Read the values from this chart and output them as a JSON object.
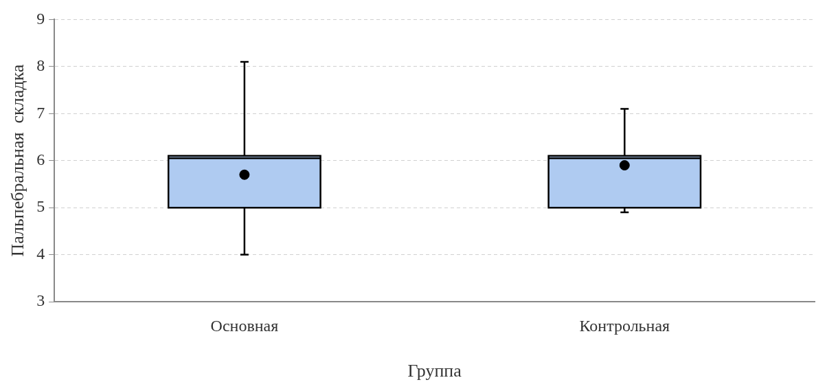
{
  "chart_data": {
    "type": "box",
    "xlabel": "Группа",
    "ylabel": "Пальпебральная  складка",
    "categories": [
      "Основная",
      "Контрольная"
    ],
    "color": "#afcbf1",
    "boxes": [
      {
        "low": 4.0,
        "q1": 5.0,
        "median": 6.05,
        "q3": 6.1,
        "high": 8.1,
        "mean": 5.7
      },
      {
        "low": 4.9,
        "q1": 5.0,
        "median": 6.05,
        "q3": 6.1,
        "high": 7.1,
        "mean": 5.9
      }
    ],
    "ylim": [
      3,
      9
    ],
    "yticks": [
      3,
      4,
      5,
      6,
      7,
      8,
      9
    ],
    "grid": "y"
  }
}
